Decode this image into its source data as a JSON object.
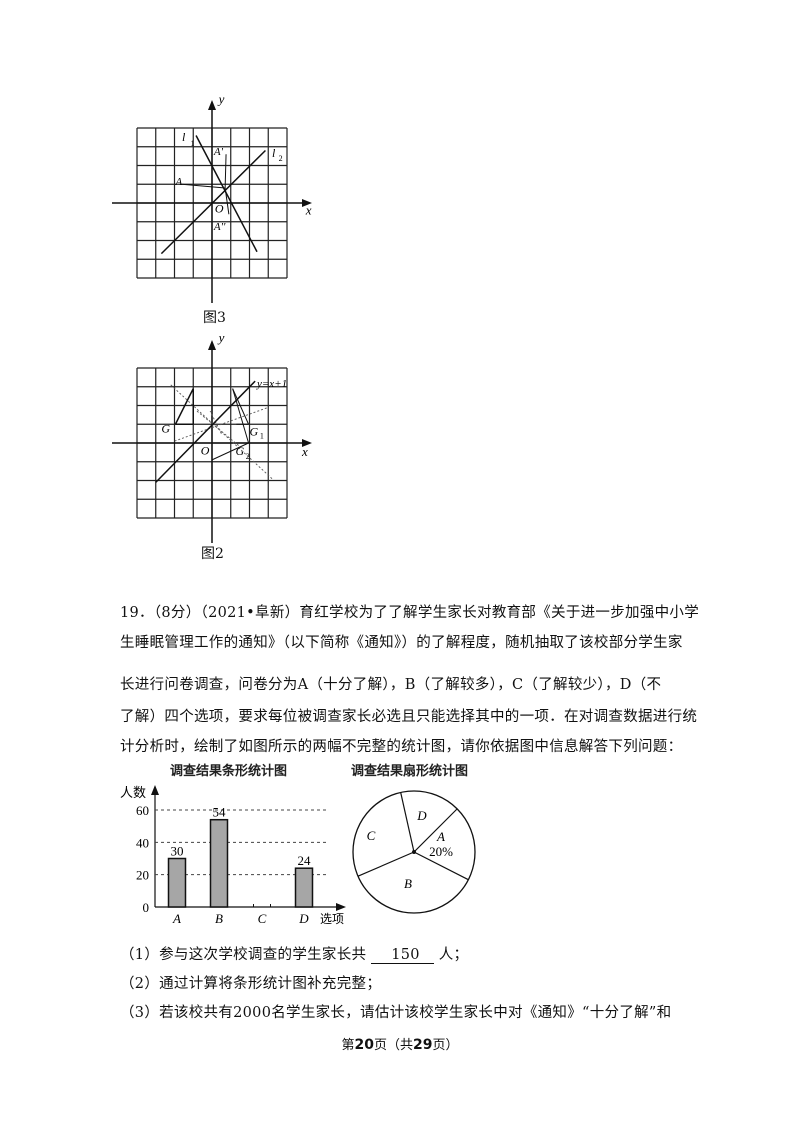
{
  "figure3": {
    "caption": "图3",
    "labels": {
      "y": "y",
      "x": "x",
      "origin": "O",
      "l1": "l",
      "l1_sub": "1",
      "l2": "l",
      "l2_sub": "2",
      "A": "A",
      "A1": "A'",
      "A2": "A''"
    }
  },
  "figure2": {
    "caption": "图2",
    "labels": {
      "y": "y",
      "x": "x",
      "origin": "O",
      "line": "y=x+1",
      "G": "G",
      "G1": "G",
      "G1_sub": "1",
      "G2": "G",
      "G2_sub": "2"
    }
  },
  "question": {
    "lines": [
      "19．（8分）（2021•阜新）育红学校为了了解学生家长对教育部《关于进一步加强中小学",
      "生睡眠管理工作的通知》（以下简称《通知》）的了解程度，随机抽取了该校部分学生家",
      "长进行问卷调查，问卷分为A（十分了解），B（了解较多），C（了解较少），D（不",
      "了解）四个选项，要求每位被调查家长必选且只能选择其中的一项．在对调查数据进行统",
      "计分析时，绘制了如图所示的两幅不完整的统计图，请你依据图中信息解答下列问题："
    ],
    "sub1_prefix": "（1）参与这次学校调查的学生家长共",
    "sub1_answer": "150",
    "sub1_suffix": "人；",
    "sub2": "（2）通过计算将条形统计图补充完整；",
    "sub3": "（3）若该校共有2000名学生家长，请估计该校学生家长中对《通知》“十分了解”和"
  },
  "chart_data": [
    {
      "type": "bar",
      "title": "调查结果条形统计图",
      "ylabel": "人数",
      "xlabel": "选项",
      "categories": [
        "A",
        "B",
        "C",
        "D"
      ],
      "values": [
        30,
        54,
        null,
        24
      ],
      "data_labels": [
        "30",
        "54",
        "",
        "24"
      ],
      "yticks": [
        "0",
        "20",
        "40",
        "60"
      ],
      "ylim": [
        0,
        60
      ],
      "grid": "dashed horizontal"
    },
    {
      "type": "pie",
      "title": "调查结果扇形统计图",
      "slices": [
        {
          "label": "A",
          "percent_label": "20%",
          "value": 20
        },
        {
          "label": "B",
          "value": 36
        },
        {
          "label": "C",
          "value": 28
        },
        {
          "label": "D",
          "value": 16
        }
      ]
    }
  ],
  "footer": {
    "prefix": "第",
    "page": "20",
    "middle": "页（共",
    "total": "29",
    "suffix": "页）"
  }
}
